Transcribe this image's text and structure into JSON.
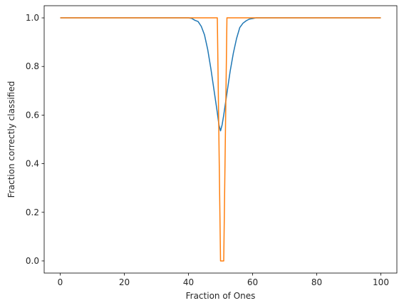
{
  "chart_data": {
    "type": "line",
    "title": "",
    "xlabel": "Fraction of Ones",
    "ylabel": "Fraction correctly classified",
    "xlim": [
      -5,
      105
    ],
    "ylim": [
      -0.05,
      1.05
    ],
    "xticks": [
      0,
      20,
      40,
      60,
      80,
      100
    ],
    "yticks": [
      0.0,
      0.2,
      0.4,
      0.6,
      0.8,
      1.0
    ],
    "xtick_labels": [
      "0",
      "20",
      "40",
      "60",
      "80",
      "100"
    ],
    "ytick_labels": [
      "0.0",
      "0.2",
      "0.4",
      "0.6",
      "0.8",
      "1.0"
    ],
    "grid": false,
    "legend": false,
    "colors": [
      "#1f77b4",
      "#ff7f0e"
    ],
    "series": [
      {
        "color": "#1f77b4",
        "x": [
          0,
          40,
          41,
          42,
          43,
          44,
          45,
          46,
          47,
          48,
          49,
          49.5,
          50,
          50.5,
          51,
          52,
          53,
          54,
          55,
          56,
          57,
          58,
          59,
          60,
          61,
          62,
          100
        ],
        "y": [
          1.0,
          1.0,
          0.998,
          0.99,
          0.985,
          0.965,
          0.93,
          0.87,
          0.79,
          0.7,
          0.61,
          0.56,
          0.535,
          0.56,
          0.6,
          0.69,
          0.78,
          0.855,
          0.915,
          0.96,
          0.978,
          0.988,
          0.995,
          0.997,
          1.0,
          1.0,
          1.0
        ]
      },
      {
        "color": "#ff7f0e",
        "x": [
          0,
          49,
          50,
          51,
          52,
          100
        ],
        "y": [
          1.0,
          1.0,
          0.0,
          0.0,
          1.0,
          1.0
        ]
      }
    ]
  }
}
